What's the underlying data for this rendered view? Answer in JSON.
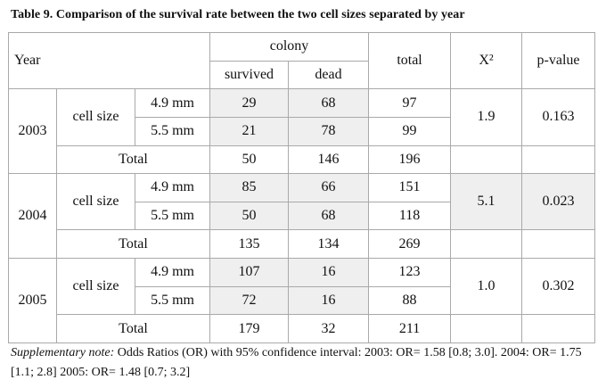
{
  "title": "Table 9. Comparison of the survival rate between the two cell sizes separated by year",
  "header": {
    "year": "Year",
    "colony": "colony",
    "survived": "survived",
    "dead": "dead",
    "total": "total",
    "chi2": "X²",
    "pvalue": "p-value"
  },
  "labels": {
    "cell_size": "cell size",
    "total": "Total"
  },
  "years": [
    {
      "year": "2003",
      "rows": [
        {
          "size": "4.9 mm",
          "survived": "29",
          "dead": "68",
          "total": "97"
        },
        {
          "size": "5.5 mm",
          "survived": "21",
          "dead": "78",
          "total": "99"
        }
      ],
      "total": {
        "survived": "50",
        "dead": "146",
        "total": "196"
      },
      "chi2": "1.9",
      "pvalue": "0.163"
    },
    {
      "year": "2004",
      "rows": [
        {
          "size": "4.9 mm",
          "survived": "85",
          "dead": "66",
          "total": "151"
        },
        {
          "size": "5.5 mm",
          "survived": "50",
          "dead": "68",
          "total": "118"
        }
      ],
      "total": {
        "survived": "135",
        "dead": "134",
        "total": "269"
      },
      "chi2": "5.1",
      "pvalue": "0.023"
    },
    {
      "year": "2005",
      "rows": [
        {
          "size": "4.9 mm",
          "survived": "107",
          "dead": "16",
          "total": "123"
        },
        {
          "size": "5.5 mm",
          "survived": "72",
          "dead": "16",
          "total": "88"
        }
      ],
      "total": {
        "survived": "179",
        "dead": "32",
        "total": "211"
      },
      "chi2": "1.0",
      "pvalue": "0.302"
    }
  ],
  "note": {
    "label": "Supplementary note:",
    "text": " Odds Ratios (OR) with 95% confidence interval: 2003: OR= 1.58 [0.8; 3.0]. 2004: OR= 1.75 [1.1; 2.8] 2005: OR= 1.48 [0.7; 3.2]"
  },
  "colors": {
    "shade": "#efefef",
    "border": "#a9a9a9"
  }
}
